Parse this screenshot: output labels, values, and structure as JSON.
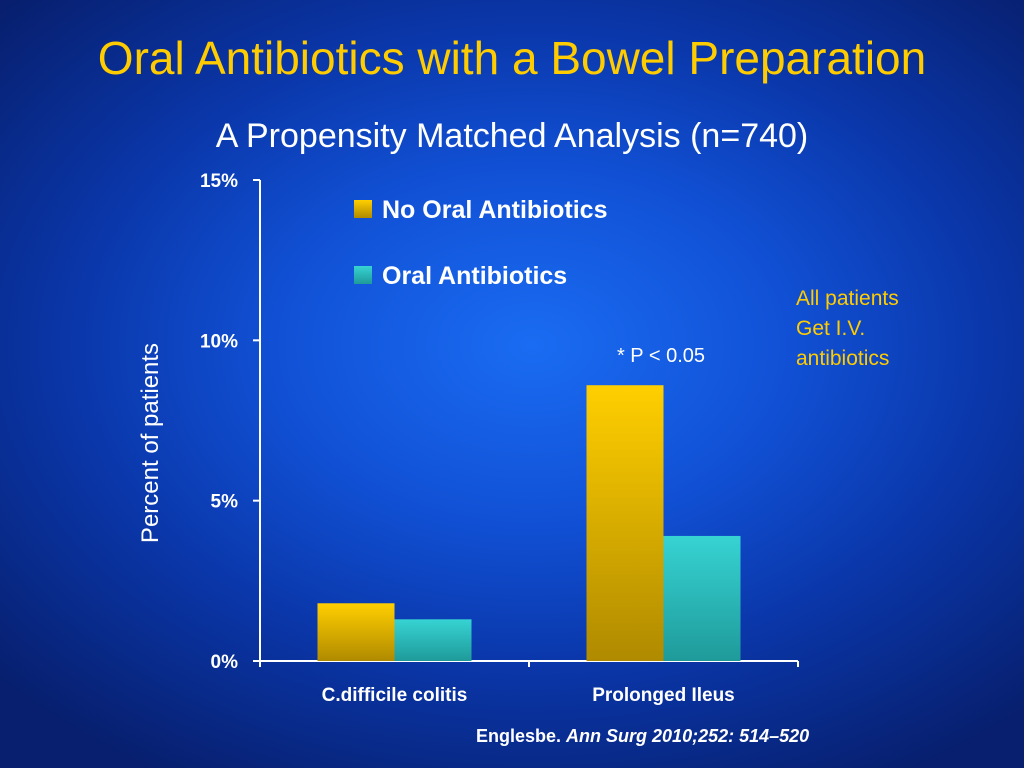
{
  "slide": {
    "title": "Oral Antibiotics with a Bowel Preparation",
    "subtitle": "A Propensity Matched Analysis (n=740)",
    "side_note": [
      "All patients",
      "Get I.V.",
      "antibiotics"
    ],
    "citation_author": "Englesbe.",
    "citation_journal": "Ann Surg 2010;252: 514–520"
  },
  "colors": {
    "title": "#ffcc00",
    "no_oral": "#f5c400",
    "oral": "#33cccc",
    "text": "#ffffff"
  },
  "chart_data": {
    "type": "bar",
    "title": "",
    "xlabel": "",
    "ylabel": "Percent of patients",
    "categories": [
      "C.difficile colitis",
      "Prolonged Ileus"
    ],
    "series": [
      {
        "name": "No Oral Antibiotics",
        "values": [
          1.8,
          8.6
        ]
      },
      {
        "name": "Oral Antibiotics",
        "values": [
          1.3,
          3.9
        ]
      }
    ],
    "ylim": [
      0,
      15
    ],
    "yticks": [
      0,
      5,
      10,
      15
    ],
    "ytick_labels": [
      "0%",
      "5%",
      "10%",
      "15%"
    ],
    "grid": false,
    "legend_position": "top",
    "annotation": "* P < 0.05"
  }
}
